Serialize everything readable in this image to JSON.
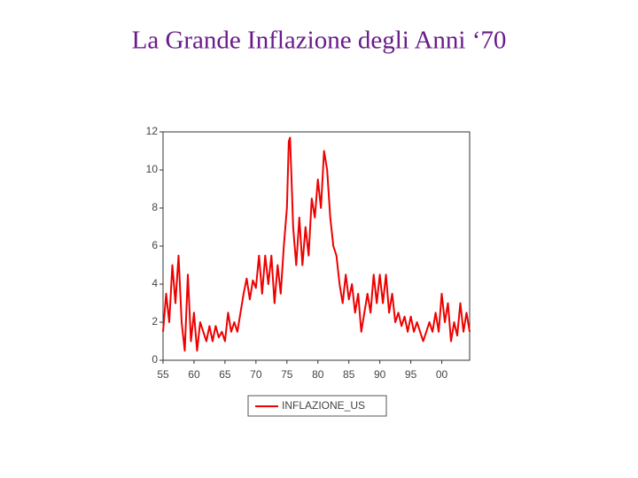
{
  "chart_data": {
    "type": "line",
    "title": "La Grande Inflazione degli Anni ‘70",
    "x": [
      55,
      55.5,
      56,
      56.5,
      57,
      57.5,
      58,
      58.5,
      59,
      59.5,
      60,
      60.5,
      61,
      61.5,
      62,
      62.5,
      63,
      63.5,
      64,
      64.5,
      65,
      65.5,
      66,
      66.5,
      67,
      67.5,
      68,
      68.5,
      69,
      69.5,
      70,
      70.5,
      71,
      71.5,
      72,
      72.5,
      73,
      73.5,
      74,
      74.5,
      75,
      75.3,
      75.5,
      75.8,
      76,
      76.5,
      77,
      77.5,
      78,
      78.5,
      79,
      79.5,
      80,
      80.5,
      81,
      81.5,
      82,
      82.5,
      83,
      83.5,
      84,
      84.5,
      85,
      85.5,
      86,
      86.5,
      87,
      87.5,
      88,
      88.5,
      89,
      89.5,
      90,
      90.5,
      91,
      91.5,
      92,
      92.5,
      93,
      93.5,
      94,
      94.5,
      95,
      95.5,
      96,
      96.5,
      97,
      97.5,
      98,
      98.5,
      99,
      99.5,
      100,
      100.5,
      101,
      101.5,
      102,
      102.5,
      103,
      103.5,
      104,
      104.5
    ],
    "series": [
      {
        "name": "INFLAZIONE_US",
        "color": "#ee0000",
        "values": [
          1.5,
          3.5,
          2,
          5,
          3,
          5.5,
          2,
          0.5,
          4.5,
          1,
          2.5,
          0.5,
          2,
          1.5,
          1,
          1.8,
          1,
          1.8,
          1.2,
          1.5,
          1,
          2.5,
          1.5,
          2,
          1.5,
          2.5,
          3.5,
          4.3,
          3.2,
          4.2,
          3.8,
          5.5,
          3.5,
          5.5,
          4,
          5.5,
          3,
          5,
          3.5,
          6,
          8,
          11.5,
          11.7,
          9,
          7,
          5,
          7.5,
          5,
          7,
          5.5,
          8.5,
          7.5,
          9.5,
          8,
          11,
          10,
          7.5,
          6,
          5.5,
          4,
          3,
          4.5,
          3.2,
          4,
          2.5,
          3.5,
          1.5,
          2.5,
          3.5,
          2.5,
          4.5,
          3,
          4.5,
          3,
          4.5,
          2.5,
          3.5,
          2,
          2.5,
          1.8,
          2.3,
          1.5,
          2.3,
          1.5,
          2,
          1.5,
          1,
          1.5,
          2,
          1.5,
          2.5,
          1.5,
          3.5,
          2,
          3,
          1,
          2,
          1.3,
          3,
          1.5,
          2.5,
          1.5
        ]
      }
    ],
    "xlim": [
      55,
      104.5
    ],
    "ylim": [
      0,
      12
    ],
    "xticks": [
      55,
      60,
      65,
      70,
      75,
      80,
      85,
      90,
      95,
      {
        "value": 100,
        "label": "00"
      }
    ],
    "yticks": [
      0,
      2,
      4,
      6,
      8,
      10,
      12
    ],
    "grid": false
  }
}
